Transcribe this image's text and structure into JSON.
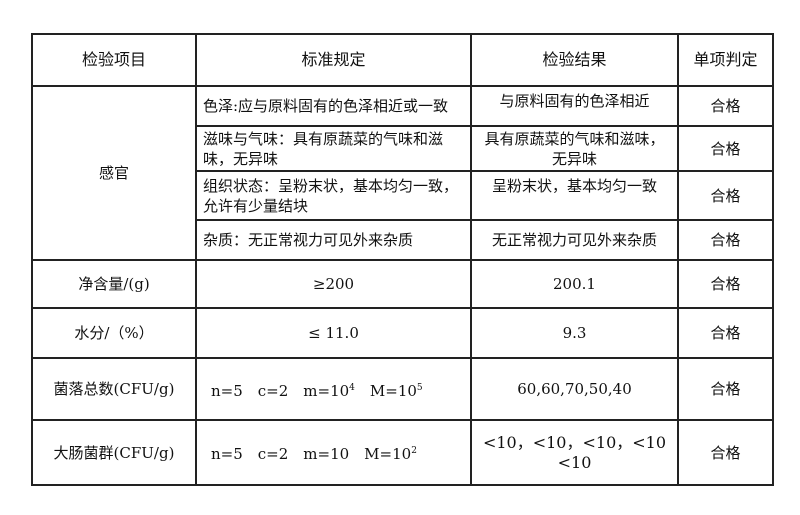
{
  "headers": [
    "检验项目",
    "标准规定",
    "检验结果",
    "单项判定"
  ],
  "sensory": {
    "item": "感官",
    "rows": [
      {
        "standard": "色泽:应与原料固有的色泽相近或一致",
        "result": "与原料固有的色泽相近",
        "verdict": "合格"
      },
      {
        "standard": "滋味与气味：具有原蔬菜的气味和滋味，无异味",
        "result": "具有原蔬菜的气味和滋味，无异味",
        "verdict": "合格"
      },
      {
        "standard": "组织状态：呈粉末状，基本均匀一致，允许有少量结块",
        "result": "呈粉末状，基本均匀一致",
        "verdict": "合格"
      },
      {
        "standard": "杂质：无正常视力可见外来杂质",
        "result": "无正常视力可见外来杂质",
        "verdict": "合格"
      }
    ]
  },
  "net": {
    "item": "净含量/(g)",
    "standard": "≥200",
    "result": "200.1",
    "verdict": "合格"
  },
  "water": {
    "item": "水分/（%）",
    "standard": "≤ 11.0",
    "result": "9.3",
    "verdict": "合格"
  },
  "colony": {
    "item": "菌落总数(CFU/g)",
    "standard_pre": "n=5　c=2　m=10",
    "exp1": "4",
    "standard_mid": "　M=10",
    "exp2": "5",
    "result": "60,60,70,50,40",
    "verdict": "合格"
  },
  "coliform": {
    "item": "大肠菌群(CFU/g)",
    "standard_pre": "n=5　c=2　m=10　M=10",
    "exp1": "2",
    "result": "<10，<10，<10，<10 <10",
    "verdict": "合格"
  }
}
